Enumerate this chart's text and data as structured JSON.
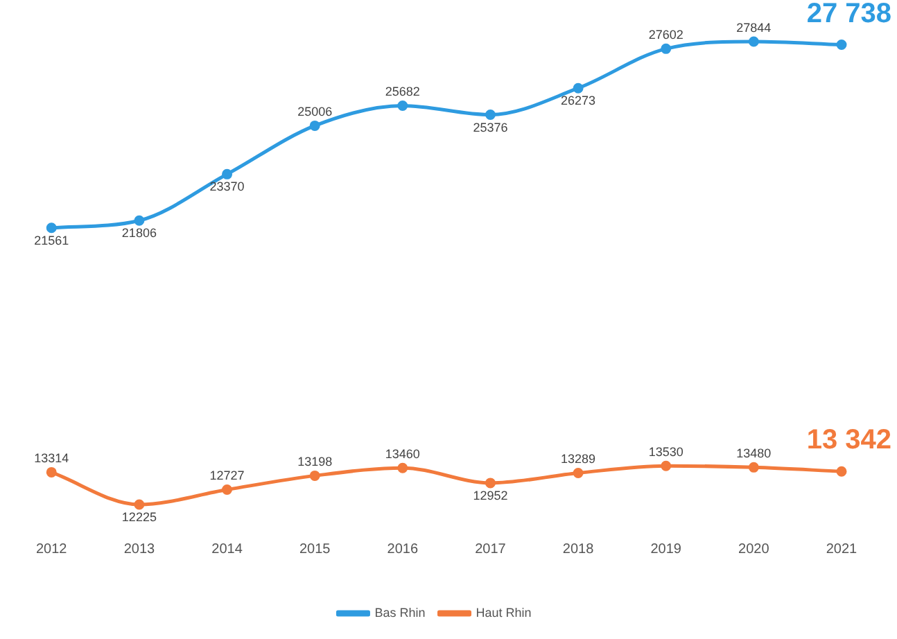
{
  "chart_data": {
    "type": "line",
    "categories": [
      "2012",
      "2013",
      "2014",
      "2015",
      "2016",
      "2017",
      "2018",
      "2019",
      "2020",
      "2021"
    ],
    "series": [
      {
        "name": "Bas Rhin",
        "color": "#2e9be0",
        "values": [
          21561,
          21806,
          23370,
          25006,
          25682,
          25376,
          26273,
          27602,
          27844,
          27738
        ],
        "value_labels": [
          "21561",
          "21806",
          "23370",
          "25006",
          "25682",
          "25376",
          "26273",
          "27602",
          "27844",
          "27 738"
        ]
      },
      {
        "name": "Haut Rhin",
        "color": "#f27a3c",
        "values": [
          13314,
          12225,
          12727,
          13198,
          13460,
          12952,
          13289,
          13530,
          13480,
          13342
        ],
        "value_labels": [
          "13314",
          "12225",
          "12727",
          "13198",
          "13460",
          "12952",
          "13289",
          "13530",
          "13480",
          "13 342"
        ]
      }
    ],
    "grid": false,
    "legend": "bottom",
    "marker": "circle",
    "line_style": "solid"
  }
}
